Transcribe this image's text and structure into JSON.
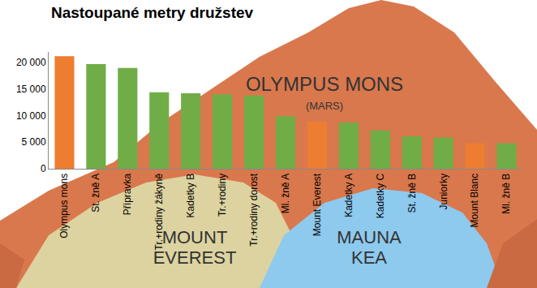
{
  "chart_data": {
    "type": "bar",
    "title": "Nastoupané metry družstev",
    "categories": [
      "Olympus mons",
      "St. žně A",
      "Přípravka",
      "Tr.+rodiny žákyně",
      "Kadetky B",
      "Tr.+rodiny",
      "Tr.+rodiny dorost",
      "Ml. žně A",
      "Mount Everest",
      "Kadetky A",
      "Kadetky C",
      "St. žně B",
      "Juniorky",
      "Mount Blanc",
      "Ml. žně B"
    ],
    "values": [
      21200,
      19700,
      19000,
      14400,
      14200,
      14000,
      13800,
      9900,
      8850,
      8700,
      7200,
      6100,
      5900,
      4810,
      4800
    ],
    "colors": [
      "#ed7d31",
      "#70ad47",
      "#70ad47",
      "#70ad47",
      "#70ad47",
      "#70ad47",
      "#70ad47",
      "#70ad47",
      "#ed7d31",
      "#70ad47",
      "#70ad47",
      "#70ad47",
      "#70ad47",
      "#ed7d31",
      "#70ad47"
    ],
    "ylim": [
      0,
      22000
    ],
    "yticks": [
      0,
      {
        "value": 5000,
        "label": "5 000"
      },
      {
        "value": 10000,
        "label": "10 000"
      },
      {
        "value": 15000,
        "label": "15 000"
      },
      {
        "value": 20000,
        "label": "20 000"
      }
    ],
    "grid": false,
    "annotations": [
      [
        "OLYMPUS MONS"
      ],
      [
        "(MARS)"
      ],
      [
        "MOUNT",
        "EVEREST"
      ],
      [
        "MAUNA",
        "KEA"
      ]
    ]
  }
}
